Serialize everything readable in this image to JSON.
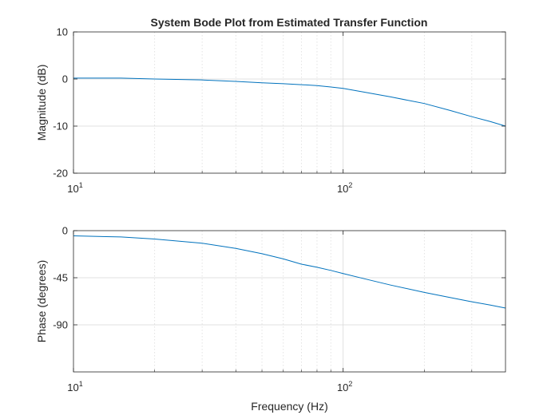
{
  "figure": {
    "title": "System Bode Plot from Estimated Transfer Function"
  },
  "chart_data": [
    {
      "type": "line",
      "id": "magnitude",
      "xscale": "log",
      "xlim": [
        10,
        400
      ],
      "ylim": [
        -20,
        10
      ],
      "grid": true,
      "xlabel": "",
      "ylabel": "Magnitude (dB)",
      "x_major_ticks": [
        10,
        100
      ],
      "x_tick_labels": [
        "10",
        "10"
      ],
      "x_tick_exponents": [
        "1",
        "2"
      ],
      "y_ticks": [
        10,
        0,
        -10,
        -20
      ],
      "y_tick_labels": [
        "10",
        "0",
        "-10",
        "-20"
      ],
      "line_color": "#0072bd",
      "series": [
        {
          "x": [
            10,
            15,
            20,
            30,
            40,
            50,
            60,
            70,
            80,
            90,
            100,
            120,
            150,
            200,
            250,
            300,
            350,
            400
          ],
          "y": [
            0.2,
            0.2,
            0.0,
            -0.2,
            -0.5,
            -0.8,
            -1.0,
            -1.2,
            -1.4,
            -1.7,
            -2.0,
            -2.8,
            -3.8,
            -5.2,
            -6.7,
            -8.0,
            -9.0,
            -10.0
          ]
        }
      ]
    },
    {
      "type": "line",
      "id": "phase",
      "xscale": "log",
      "xlim": [
        10,
        400
      ],
      "ylim": [
        -135,
        0
      ],
      "grid": true,
      "xlabel": "Frequency (Hz)",
      "ylabel": "Phase (degrees)",
      "x_major_ticks": [
        10,
        100
      ],
      "x_tick_labels": [
        "10",
        "10"
      ],
      "x_tick_exponents": [
        "1",
        "2"
      ],
      "y_ticks": [
        0,
        -45,
        -90
      ],
      "y_tick_labels": [
        "0",
        "-45",
        "-90"
      ],
      "line_color": "#0072bd",
      "series": [
        {
          "x": [
            10,
            15,
            20,
            30,
            40,
            50,
            60,
            70,
            80,
            90,
            100,
            120,
            150,
            200,
            250,
            300,
            350,
            400
          ],
          "y": [
            -5,
            -6,
            -8,
            -12,
            -17,
            -22,
            -27,
            -32,
            -35,
            -38,
            -41,
            -46,
            -52,
            -59,
            -64,
            -68,
            -71,
            -74
          ]
        }
      ]
    }
  ]
}
